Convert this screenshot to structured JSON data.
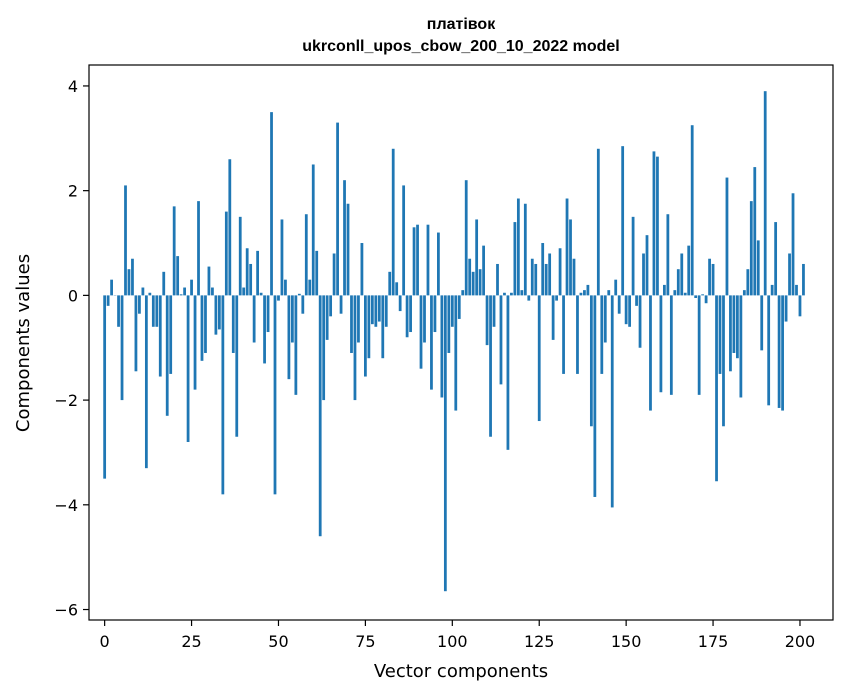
{
  "chart_data": {
    "type": "bar",
    "title": "платівок",
    "subtitle": "ukrconll_upos_cbow_200_10_2022 model",
    "xlabel": "Vector components",
    "ylabel": "Components values",
    "xlim": [
      -4.5,
      209.5
    ],
    "ylim": [
      -6.2,
      4.4
    ],
    "xticks": [
      0,
      25,
      50,
      75,
      100,
      125,
      150,
      175,
      200
    ],
    "xtick_labels": [
      "0",
      "25",
      "50",
      "75",
      "100",
      "125",
      "150",
      "175",
      "200"
    ],
    "yticks": [
      -6,
      -4,
      -2,
      0,
      2,
      4
    ],
    "ytick_labels": [
      "−6",
      "−4",
      "−2",
      "0",
      "2",
      "4"
    ],
    "grid": false,
    "color": "#1f77b4",
    "values": [
      -3.5,
      -0.2,
      0.3,
      0.0,
      -0.6,
      -2.0,
      2.1,
      0.5,
      0.7,
      -1.45,
      -0.35,
      0.15,
      -3.3,
      0.05,
      -0.6,
      -0.6,
      -1.55,
      0.45,
      -2.3,
      -1.5,
      1.7,
      0.75,
      0.02,
      0.15,
      -2.8,
      0.3,
      -1.8,
      1.8,
      -1.25,
      -1.1,
      0.55,
      0.15,
      -0.75,
      -0.65,
      -3.8,
      1.6,
      2.6,
      -1.1,
      -2.7,
      1.5,
      0.15,
      0.9,
      0.6,
      -0.9,
      0.85,
      0.05,
      -1.3,
      -0.7,
      3.5,
      -3.8,
      -0.1,
      1.45,
      0.3,
      -1.6,
      -0.9,
      -1.9,
      0.03,
      -0.35,
      1.55,
      0.3,
      2.5,
      0.85,
      -4.6,
      -2.0,
      -0.85,
      -0.4,
      0.8,
      3.3,
      -0.35,
      2.2,
      1.75,
      -1.1,
      -2.0,
      -0.9,
      1.0,
      -1.55,
      -1.2,
      -0.55,
      -0.6,
      -0.5,
      -1.2,
      -0.6,
      0.45,
      2.8,
      0.25,
      -0.3,
      2.1,
      -0.8,
      -0.7,
      1.3,
      1.35,
      -1.4,
      -0.9,
      1.35,
      -1.8,
      -0.7,
      1.2,
      -1.95,
      -5.65,
      -1.1,
      -0.6,
      -2.2,
      -0.45,
      0.1,
      2.2,
      0.7,
      0.45,
      1.45,
      0.5,
      0.95,
      -0.95,
      -2.7,
      -0.6,
      0.6,
      -1.7,
      0.05,
      -2.95,
      0.05,
      1.4,
      1.85,
      0.1,
      1.75,
      -0.1,
      0.7,
      0.6,
      -2.4,
      1.0,
      0.6,
      0.8,
      -0.85,
      -0.1,
      0.9,
      -1.5,
      1.85,
      1.45,
      0.7,
      -1.5,
      0.05,
      0.1,
      0.2,
      -2.5,
      -3.85,
      2.8,
      -1.5,
      -0.9,
      0.1,
      -4.05,
      0.3,
      -0.35,
      2.85,
      -0.55,
      -0.6,
      1.5,
      -0.2,
      -1.0,
      0.8,
      1.15,
      -2.2,
      2.75,
      2.65,
      -1.85,
      0.2,
      1.55,
      -1.9,
      0.1,
      0.5,
      0.8,
      0.05,
      0.95,
      3.25,
      -0.05,
      -1.9,
      0.02,
      -0.15,
      0.7,
      0.6,
      -3.55,
      -1.5,
      -2.5,
      2.25,
      -1.45,
      -1.1,
      -1.2,
      -1.95,
      0.1,
      0.5,
      1.8,
      2.45,
      1.05,
      -1.05,
      3.9,
      -2.1,
      0.2,
      1.4,
      -2.15,
      -2.2,
      -0.5,
      0.8,
      1.95,
      0.2,
      -0.4,
      0.6
    ]
  }
}
